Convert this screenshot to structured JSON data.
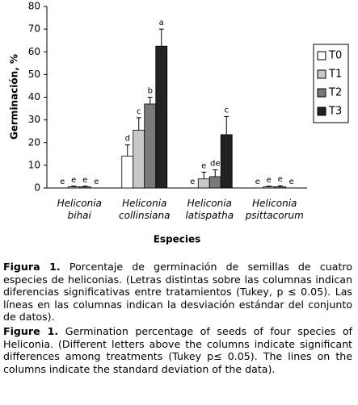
{
  "chart_data": {
    "type": "bar",
    "ylabel": "Germinación, %",
    "xlabel": "Especies",
    "categories": [
      "Heliconia bihai",
      "Heliconia collinsiana",
      "Heliconia latispatha",
      "Heliconia psittacorum"
    ],
    "ylim": [
      0,
      80
    ],
    "yticks": [
      0,
      10,
      20,
      30,
      40,
      50,
      60,
      70,
      80
    ],
    "legend": "right",
    "series": [
      {
        "name": "T0",
        "color": "#ffffff",
        "values": [
          0,
          14,
          0,
          0
        ],
        "errors": [
          0,
          5,
          0,
          0
        ],
        "significance_letters": [
          "e",
          "d",
          "e",
          "e"
        ]
      },
      {
        "name": "T1",
        "color": "#c8c8c8",
        "values": [
          0.5,
          25.5,
          4,
          0.5
        ],
        "errors": [
          0.3,
          5.5,
          3,
          0.3
        ],
        "significance_letters": [
          "e",
          "c",
          "e",
          "e"
        ]
      },
      {
        "name": "T2",
        "color": "#7a7a7a",
        "values": [
          0.5,
          37,
          5,
          0.5
        ],
        "errors": [
          0.3,
          3,
          3,
          0.5
        ],
        "significance_letters": [
          "e",
          "b",
          "de",
          "e"
        ]
      },
      {
        "name": "T3",
        "color": "#222222",
        "values": [
          0,
          62.5,
          23.5,
          0
        ],
        "errors": [
          0,
          7.5,
          8,
          0
        ],
        "significance_letters": [
          "e",
          "a",
          "c",
          "e"
        ]
      }
    ]
  },
  "captions": [
    {
      "label": "Figura 1.",
      "text": "Porcentaje de germinación de semillas de cuatro especies de heliconias. (Letras distintas sobre las columnas indican diferencias significativas entre tratamientos (Tukey, p ≤ 0.05). Las líneas en las columnas indican la desviación estándar del conjunto de datos)."
    },
    {
      "label": "Figure 1.",
      "text": "Germination percentage of seeds of four species of Heliconia. (Different letters above the columns indicate significant differences among treatments (Tukey p≤ 0.05). The lines on the columns indicate the standard deviation of the data)."
    }
  ]
}
